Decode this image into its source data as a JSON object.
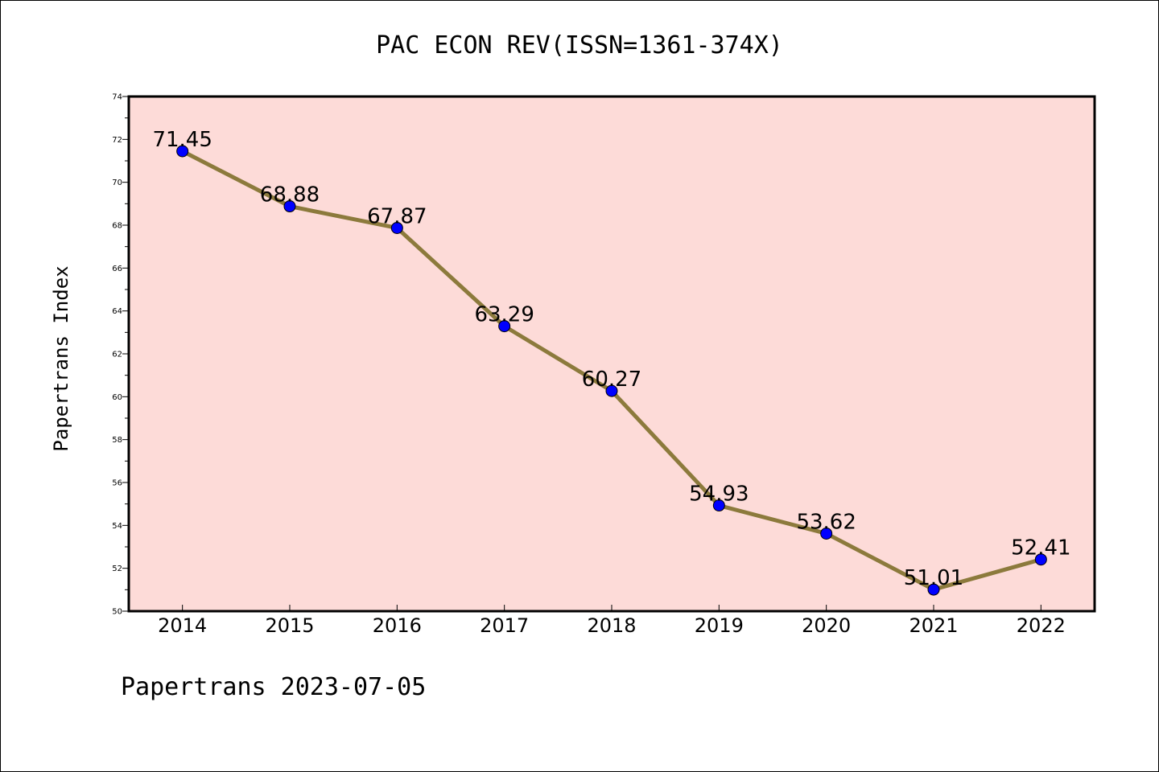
{
  "chart_data": {
    "type": "line",
    "title": "PAC ECON REV(ISSN=1361-374X)",
    "xlabel": "",
    "ylabel": "Papertrans Index",
    "footer": "Papertrans 2023-07-05",
    "categories": [
      "2014",
      "2015",
      "2016",
      "2017",
      "2018",
      "2019",
      "2020",
      "2021",
      "2022"
    ],
    "series": [
      {
        "values": [
          71.45,
          68.88,
          67.87,
          63.29,
          60.27,
          54.93,
          53.62,
          51.01,
          52.41
        ],
        "data_labels": [
          "71.45",
          "68.88",
          "67.87",
          "63.29",
          "60.27",
          "54.93",
          "53.62",
          "51.01",
          "52.41"
        ]
      }
    ],
    "ylim": [
      50,
      74
    ],
    "yticks": [
      50,
      52,
      54,
      56,
      58,
      60,
      62,
      64,
      66,
      68,
      70,
      72,
      74
    ],
    "ytick_labels": [
      "50",
      "52",
      "54",
      "56",
      "58",
      "60",
      "62",
      "64",
      "66",
      "68",
      "70",
      "72",
      "74"
    ],
    "grid": false,
    "legend": "none",
    "colors": {
      "plot_background": "#fddbd8",
      "line": "#8c7a3c",
      "marker_fill": "#0000ff",
      "marker_edge": "#000000",
      "axes": "#000000"
    }
  }
}
